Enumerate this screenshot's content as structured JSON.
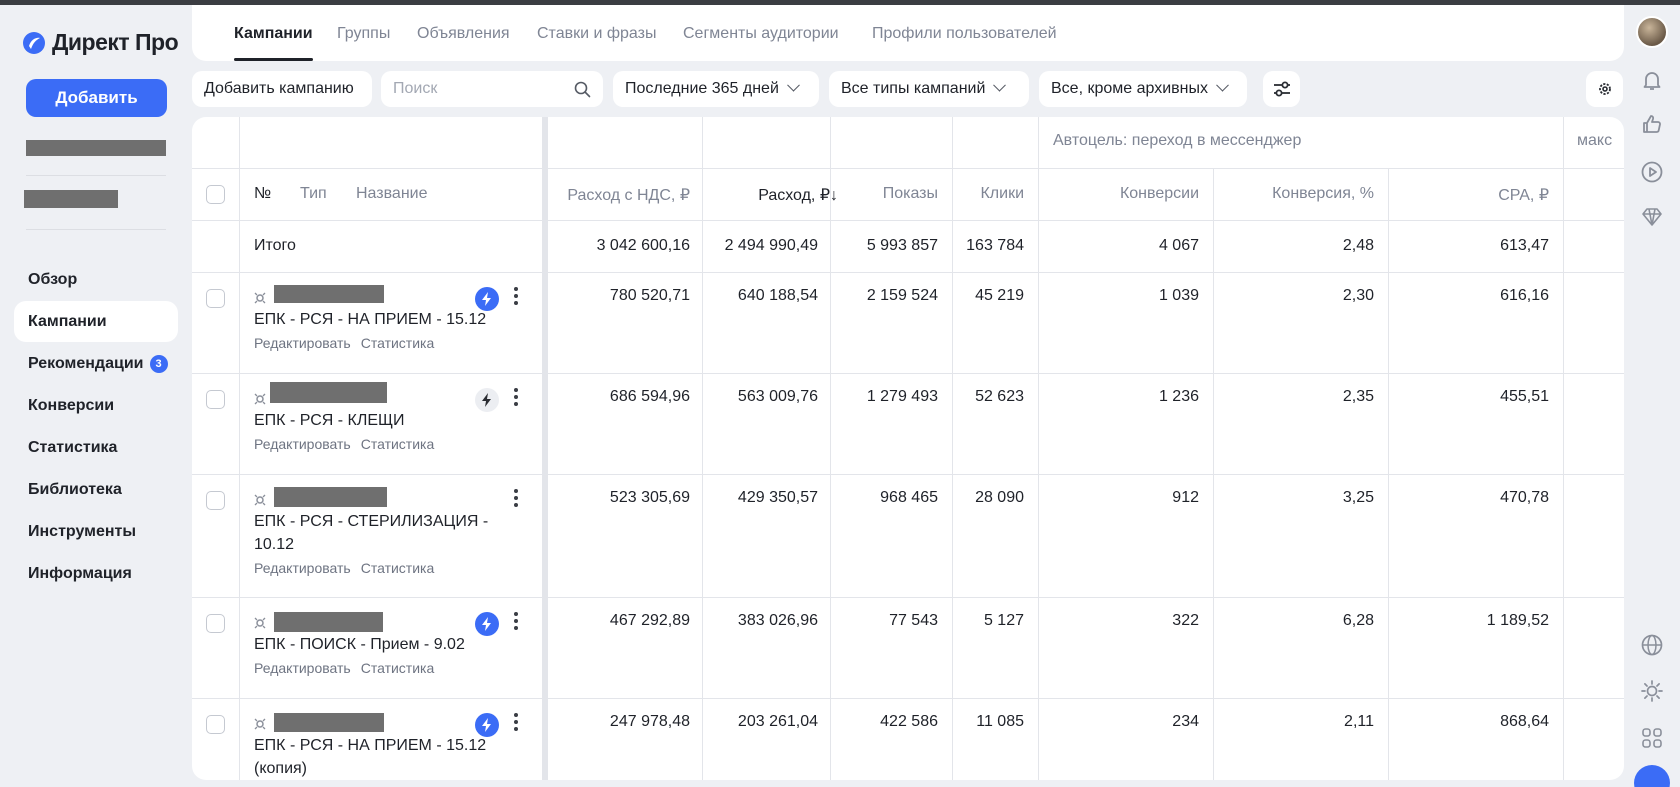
{
  "app": {
    "logo_text": "Директ Про",
    "add_label": "Добавить"
  },
  "sidebar": {
    "items": [
      {
        "label": "Обзор"
      },
      {
        "label": "Кампании"
      },
      {
        "label": "Рекомендации",
        "badge": "3"
      },
      {
        "label": "Конверсии"
      },
      {
        "label": "Статистика"
      },
      {
        "label": "Библиотека"
      },
      {
        "label": "Инструменты"
      },
      {
        "label": "Информация"
      }
    ]
  },
  "tabs": [
    {
      "label": "Кампании"
    },
    {
      "label": "Группы"
    },
    {
      "label": "Объявления"
    },
    {
      "label": "Ставки и фразы"
    },
    {
      "label": "Сегменты аудитории"
    },
    {
      "label": "Профили пользователей"
    }
  ],
  "toolbar": {
    "add_campaign": "Добавить кампанию",
    "search_placeholder": "Поиск",
    "period": "Последние 365 дней",
    "campaign_types": "Все типы кампаний",
    "status": "Все, кроме архивных"
  },
  "table": {
    "group_header": "Автоцель: переход в мессенджер",
    "group_header_right": "макс",
    "headers": {
      "num": "№",
      "type": "Тип",
      "name": "Название",
      "cost_vat": "Расход с НДС, ₽",
      "cost": "Расход, ₽↓",
      "impressions": "Показы",
      "clicks": "Клики",
      "conversions": "Конверсии",
      "conv_rate": "Конверсия, %",
      "cpa": "CPA, ₽"
    },
    "total": {
      "label": "Итого",
      "cost_vat": "3 042 600,16",
      "cost": "2 494 990,49",
      "impressions": "5 993 857",
      "clicks": "163 784",
      "conversions": "4 067",
      "conv_rate": "2,48",
      "cpa": "613,47"
    },
    "edit_label": "Редактировать",
    "stats_label": "Статистика",
    "rows": [
      {
        "name": "ЕПК - РСЯ - НА ПРИЕМ - 15.12",
        "cost_vat": "780 520,71",
        "cost": "640 188,54",
        "impressions": "2 159 524",
        "clicks": "45 219",
        "conversions": "1 039",
        "conv_rate": "2,30",
        "cpa": "616,16"
      },
      {
        "name": "ЕПК - РСЯ - КЛЕЩИ",
        "cost_vat": "686 594,96",
        "cost": "563 009,76",
        "impressions": "1 279 493",
        "clicks": "52 623",
        "conversions": "1 236",
        "conv_rate": "2,35",
        "cpa": "455,51"
      },
      {
        "name": "ЕПК - РСЯ - СТЕРИЛИЗАЦИЯ - 10.12",
        "cost_vat": "523 305,69",
        "cost": "429 350,57",
        "impressions": "968 465",
        "clicks": "28 090",
        "conversions": "912",
        "conv_rate": "3,25",
        "cpa": "470,78"
      },
      {
        "name": "ЕПК - ПОИСК - Прием - 9.02",
        "cost_vat": "467 292,89",
        "cost": "383 026,96",
        "impressions": "77 543",
        "clicks": "5 127",
        "conversions": "322",
        "conv_rate": "6,28",
        "cpa": "1 189,52"
      },
      {
        "name": "ЕПК - РСЯ - НА ПРИЕМ - 15.12 (копия)",
        "cost_vat": "247 978,48",
        "cost": "203 261,04",
        "impressions": "422 586",
        "clicks": "11 085",
        "conversions": "234",
        "conv_rate": "2,11",
        "cpa": "868,64"
      }
    ]
  },
  "colors": {
    "accent": "#3b6cf6",
    "background": "#eef0f4"
  },
  "icons": [
    "search-icon",
    "chevron-down-icon",
    "filter-sliders-icon",
    "settings-gear-icon",
    "bell-icon",
    "thumbs-up-icon",
    "play-icon",
    "diamond-icon",
    "globe-icon",
    "sun-icon",
    "apps-grid-icon",
    "lightning-icon",
    "more-vertical-icon"
  ]
}
